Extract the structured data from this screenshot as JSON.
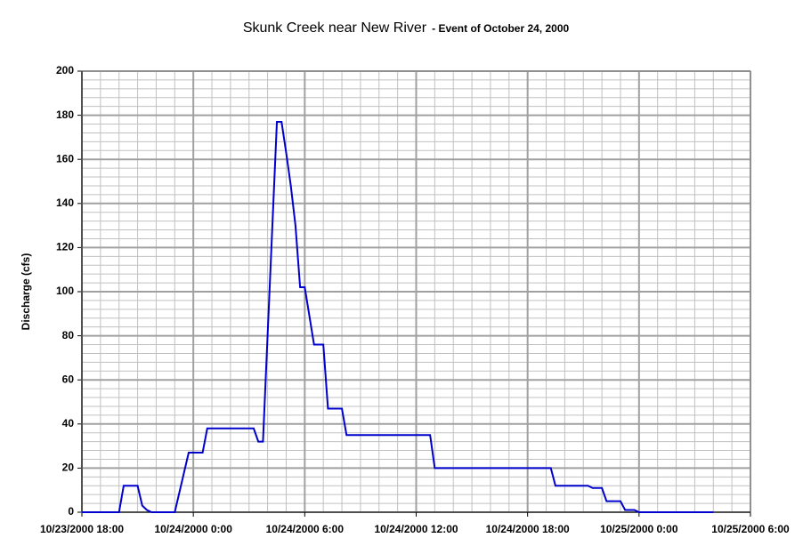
{
  "chart_data": {
    "type": "line",
    "title": "Skunk Creek near New River",
    "subtitle": "- Event of October 24, 2000",
    "y_label": "Discharge (cfs)",
    "x": [
      "2000-10-23T18:00",
      "2000-10-23T20:00",
      "2000-10-23T20:15",
      "2000-10-23T21:00",
      "2000-10-23T21:15",
      "2000-10-23T21:30",
      "2000-10-23T21:45",
      "2000-10-23T23:00",
      "2000-10-23T23:45",
      "2000-10-24T00:30",
      "2000-10-24T00:45",
      "2000-10-24T03:15",
      "2000-10-24T03:30",
      "2000-10-24T03:45",
      "2000-10-24T04:30",
      "2000-10-24T04:45",
      "2000-10-24T05:00",
      "2000-10-24T05:15",
      "2000-10-24T05:30",
      "2000-10-24T05:45",
      "2000-10-24T06:00",
      "2000-10-24T06:30",
      "2000-10-24T07:00",
      "2000-10-24T07:15",
      "2000-10-24T08:00",
      "2000-10-24T08:15",
      "2000-10-24T12:45",
      "2000-10-24T13:00",
      "2000-10-24T19:15",
      "2000-10-24T19:30",
      "2000-10-24T21:15",
      "2000-10-24T21:30",
      "2000-10-24T22:00",
      "2000-10-24T22:15",
      "2000-10-24T23:00",
      "2000-10-24T23:15",
      "2000-10-24T23:45",
      "2000-10-25T00:00",
      "2000-10-25T04:00"
    ],
    "series": [
      {
        "name": "Discharge",
        "color": "#0000cc",
        "values": [
          0,
          0,
          12,
          12,
          3,
          1,
          0,
          0,
          27,
          27,
          38,
          38,
          32,
          32,
          177,
          177,
          163,
          148,
          130,
          102,
          102,
          76,
          76,
          47,
          47,
          35,
          35,
          20,
          20,
          12,
          12,
          11,
          11,
          5,
          5,
          1,
          1,
          0,
          0
        ]
      }
    ],
    "xlim": [
      "2000-10-23T18:00",
      "2000-10-25T06:00"
    ],
    "xticks": [
      {
        "value": "2000-10-23T18:00",
        "label": "10/23/2000 18:00"
      },
      {
        "value": "2000-10-24T00:00",
        "label": "10/24/2000 0:00"
      },
      {
        "value": "2000-10-24T06:00",
        "label": "10/24/2000 6:00"
      },
      {
        "value": "2000-10-24T12:00",
        "label": "10/24/2000 12:00"
      },
      {
        "value": "2000-10-24T18:00",
        "label": "10/24/2000 18:00"
      },
      {
        "value": "2000-10-25T00:00",
        "label": "10/25/2000 0:00"
      },
      {
        "value": "2000-10-25T06:00",
        "label": "10/25/2000 6:00"
      }
    ],
    "ylim": [
      0,
      200
    ],
    "yticks": [
      0,
      20,
      40,
      60,
      80,
      100,
      120,
      140,
      160,
      180,
      200
    ],
    "grid": true
  }
}
